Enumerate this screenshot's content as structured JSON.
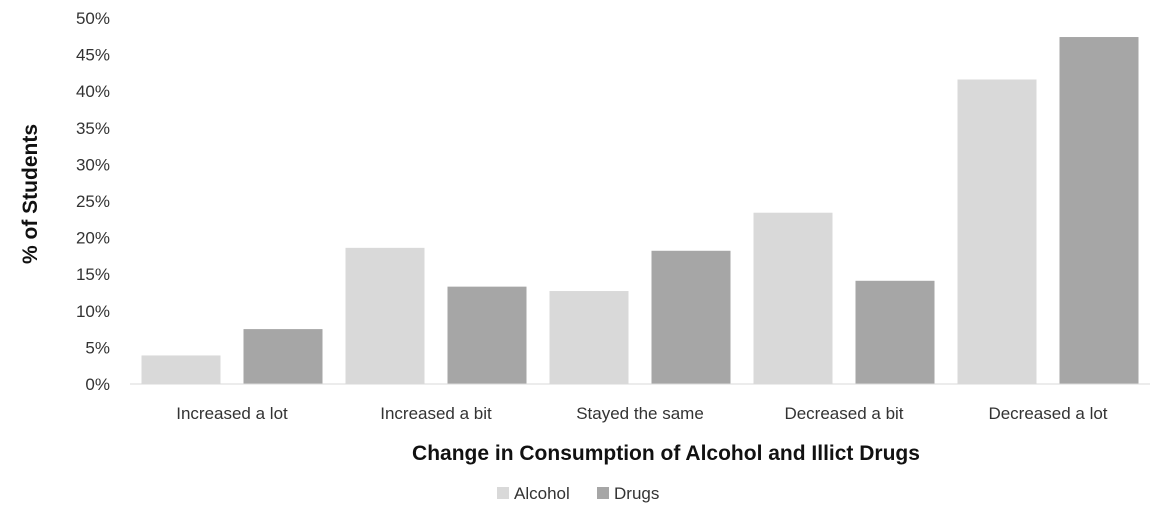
{
  "chart_data": {
    "type": "bar",
    "categories": [
      "Increased a lot",
      "Increased a bit",
      "Stayed the same",
      "Decreased a bit",
      "Decreased a lot"
    ],
    "series": [
      {
        "name": "Alcohol",
        "values": [
          3.9,
          18.6,
          12.7,
          23.4,
          41.6
        ],
        "color": "#d9d9d9"
      },
      {
        "name": "Drugs",
        "values": [
          7.5,
          13.3,
          18.2,
          14.1,
          47.4
        ],
        "color": "#a6a6a6"
      }
    ],
    "xlabel": "Change in Consumption of Alcohol and Illict Drugs",
    "ylabel": "% of Students",
    "ylim": [
      0,
      50
    ],
    "yticks": [
      0,
      5,
      10,
      15,
      20,
      25,
      30,
      35,
      40,
      45,
      50
    ],
    "ytick_labels": [
      "0%",
      "5%",
      "10%",
      "15%",
      "20%",
      "25%",
      "30%",
      "35%",
      "40%",
      "45%",
      "50%"
    ],
    "grid": false,
    "legend_position": "bottom"
  }
}
